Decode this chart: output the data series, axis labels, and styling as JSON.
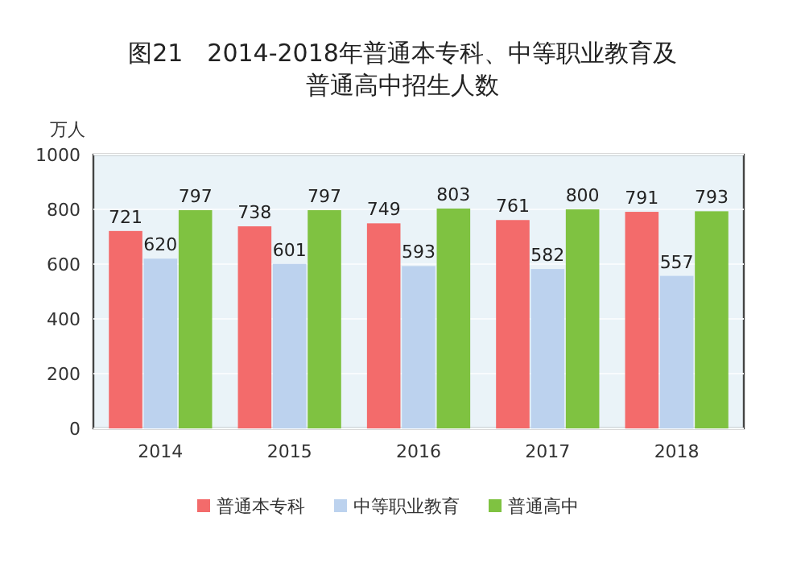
{
  "chart_data": {
    "type": "bar",
    "title": "图21　2014-2018年普通本专科、中等职业教育及普通高中招生人数",
    "ylabel": "万人",
    "categories": [
      "2014",
      "2015",
      "2016",
      "2017",
      "2018"
    ],
    "series": [
      {
        "name": "普通本专科",
        "color": "#f36b6b",
        "values": [
          721,
          738,
          749,
          761,
          791
        ]
      },
      {
        "name": "中等职业教育",
        "color": "#bcd2ee",
        "values": [
          620,
          601,
          593,
          582,
          557
        ]
      },
      {
        "name": "普通高中",
        "color": "#7fc241",
        "values": [
          797,
          797,
          803,
          800,
          793
        ]
      }
    ],
    "ylim": [
      0,
      1000
    ],
    "yticks": [
      0,
      200,
      400,
      600,
      800,
      1000
    ],
    "grid": "y",
    "legend": "bottom",
    "data_labels": true
  }
}
